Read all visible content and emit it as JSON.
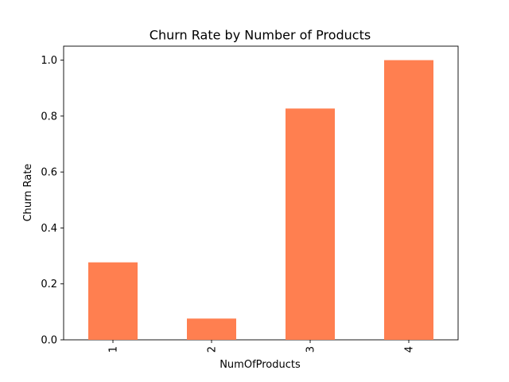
{
  "chart_data": {
    "type": "bar",
    "title": "Churn Rate by Number of Products",
    "xlabel": "NumOfProducts",
    "ylabel": "Churn Rate",
    "categories": [
      "1",
      "2",
      "3",
      "4"
    ],
    "values": [
      0.277,
      0.076,
      0.827,
      1.0
    ],
    "ylim": [
      0,
      1.05
    ],
    "yticks": [
      0.0,
      0.2,
      0.4,
      0.6,
      0.8,
      1.0
    ],
    "ytick_labels": [
      "0.0",
      "0.2",
      "0.4",
      "0.6",
      "0.8",
      "1.0"
    ],
    "bar_color": "#ff7f50",
    "grid": false,
    "legend": "none"
  }
}
